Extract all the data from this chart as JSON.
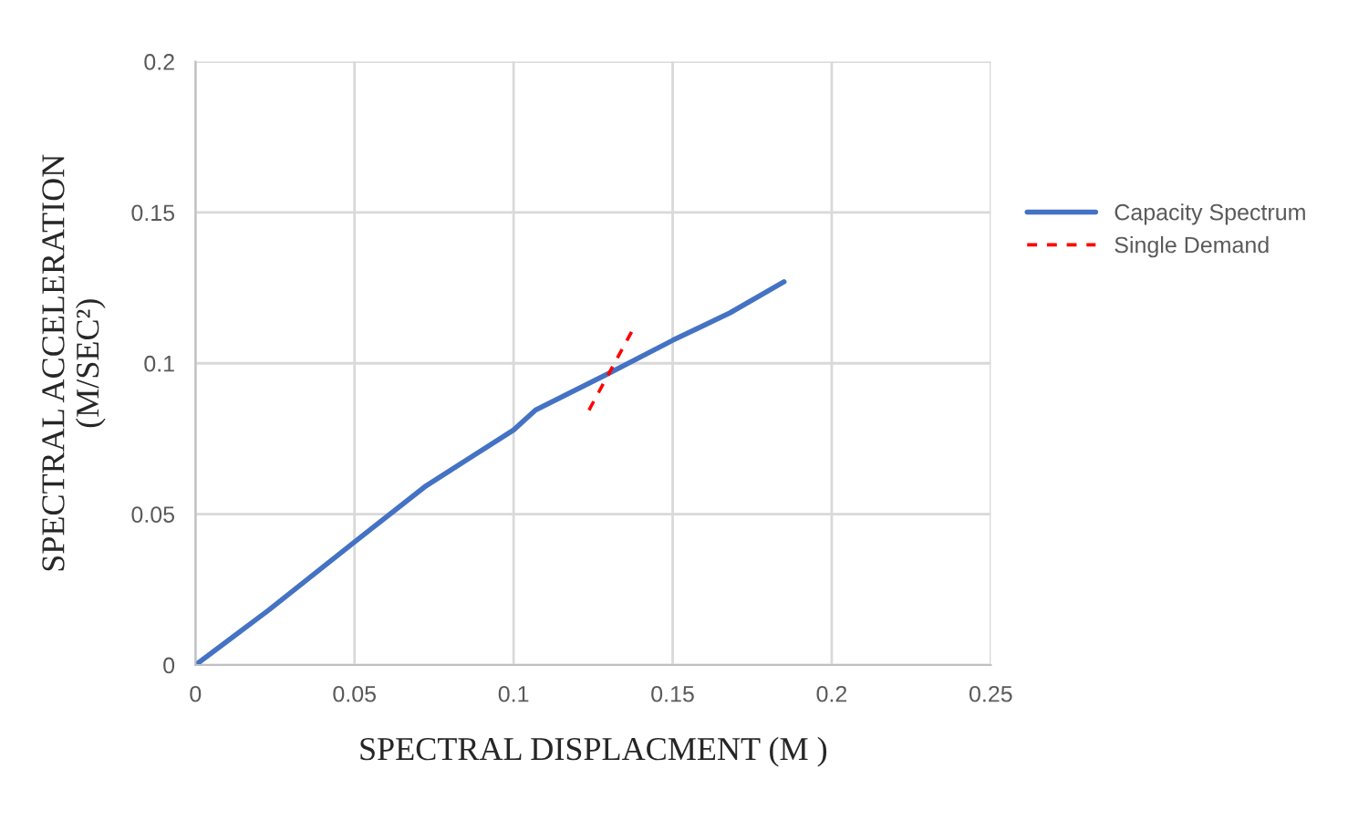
{
  "chart_data": {
    "type": "line",
    "xlabel": "SPECTRAL DISPLACMENT (M )",
    "ylabel": "SPECTRAL ACCELERATION\n(M/SEC²)",
    "xlim": [
      0,
      0.25
    ],
    "ylim": [
      0,
      0.2
    ],
    "xticks": [
      0,
      0.05,
      0.1,
      0.15,
      0.2,
      0.25
    ],
    "yticks": [
      0,
      0.05,
      0.1,
      0.15,
      0.2
    ],
    "grid": true,
    "legend": "right",
    "series": [
      {
        "name": "Capacity Spectrum",
        "color": "#4472c4",
        "line_style": "solid",
        "x": [
          0,
          0.0229,
          0.05,
          0.0725,
          0.1,
          0.1069,
          0.1298,
          0.15,
          0.168,
          0.185
        ],
        "values": [
          0,
          0.0181,
          0.0408,
          0.0594,
          0.0779,
          0.0845,
          0.0966,
          0.1076,
          0.1167,
          0.127
        ]
      },
      {
        "name": "Single Demand",
        "color": "#ff0000",
        "line_style": "dashed",
        "x": [
          0.1237,
          0.1374
        ],
        "values": [
          0.0845,
          0.111
        ]
      }
    ]
  }
}
